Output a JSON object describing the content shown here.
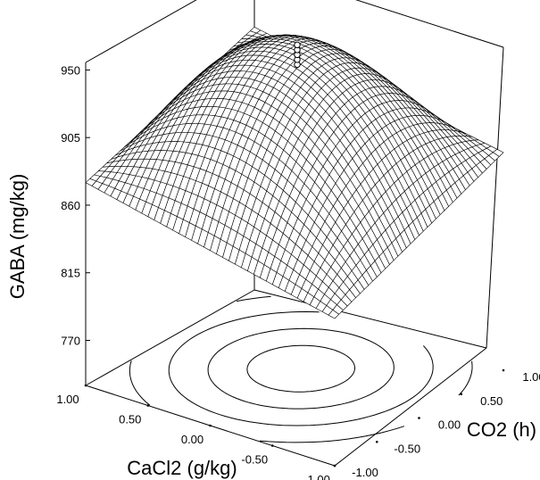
{
  "chart_data": {
    "type": "surface3d",
    "title": "",
    "zlabel": "GABA (mg/kg)",
    "xlabel": "CaCl2 (g/kg)",
    "ylabel": "CO2 (h)",
    "zticks": [
      "770",
      "815",
      "860",
      "905",
      "950"
    ],
    "xticks": [
      "1.00",
      "0.50",
      "0.00",
      "-0.50",
      "-1.00"
    ],
    "yticks": [
      "-1.00",
      "-0.50",
      "0.00",
      "0.50",
      "1.00"
    ],
    "xlim": [
      -1,
      1
    ],
    "ylim": [
      -1,
      1
    ],
    "zlim": [
      740,
      955
    ],
    "surface_corners": [
      {
        "x": -1,
        "y": -1,
        "z": 838
      },
      {
        "x": 1,
        "y": -1,
        "z": 875
      },
      {
        "x": 1,
        "y": 1,
        "z": 915
      },
      {
        "x": -1,
        "y": 1,
        "z": 885
      }
    ],
    "surface_peak": {
      "x": 0.1,
      "y": 0.3,
      "z": 952
    },
    "grid_lines": 40,
    "contours": 4,
    "design_points": [
      {
        "x": 0,
        "y": 0,
        "z": 945,
        "replicates": 5
      }
    ],
    "colors": {
      "mesh": "#000000",
      "surface": "#ffffff"
    }
  }
}
